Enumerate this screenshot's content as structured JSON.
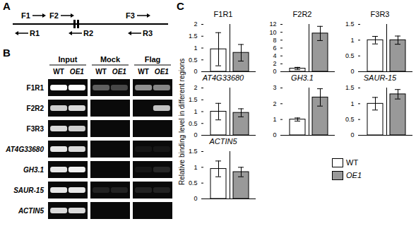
{
  "panel_labels": [
    "A",
    "B",
    "C"
  ],
  "diagram": {
    "forward_primers": [
      "F1",
      "F2",
      "F3"
    ],
    "reverse_primers": [
      "R1",
      "R2",
      "R3"
    ]
  },
  "gel": {
    "groups": [
      "Input",
      "Mock",
      "Flag"
    ],
    "lanes": [
      "WT",
      "OE1",
      "WT",
      "OE1",
      "WT",
      "OE1"
    ],
    "rows": [
      "F1R1",
      "F2R2",
      "F3R3",
      "AT4G33680",
      "GH3.1",
      "SAUR-15",
      "ACTIN5"
    ],
    "bands": [
      [
        1,
        1,
        0.35,
        0.25,
        0.55,
        0.5
      ],
      [
        0.8,
        0.85,
        0,
        0,
        0,
        0.75
      ],
      [
        0.85,
        0.8,
        0,
        0,
        0,
        0
      ],
      [
        0.9,
        0.85,
        0,
        0,
        0.05,
        0.05
      ],
      [
        0.9,
        0.95,
        0,
        0,
        0.05,
        0.12
      ],
      [
        0.9,
        0.9,
        0.1,
        0.1,
        0.1,
        0.1
      ],
      [
        0.85,
        0.85,
        0,
        0,
        0,
        0
      ]
    ]
  },
  "y_label": "Relative binding level in different regions",
  "legend_entries": [
    {
      "name": "WT",
      "color": "#ffffff"
    },
    {
      "name": "OE1",
      "color": "#999999"
    }
  ],
  "chart_data": [
    {
      "type": "bar",
      "title": "F1R1",
      "categories": [
        "WT",
        "OE1"
      ],
      "values": [
        0.95,
        0.8
      ],
      "errors": [
        0.7,
        0.35
      ],
      "colors": [
        "#ffffff",
        "#999999"
      ],
      "ylim": [
        0,
        2
      ],
      "yticks": [
        0,
        0.5,
        1,
        1.5,
        2
      ],
      "tick_labels": "y"
    },
    {
      "type": "bar",
      "title": "F2R2",
      "categories": [
        "WT",
        "OE1"
      ],
      "values": [
        0.8,
        9.7
      ],
      "errors": [
        0.3,
        1.8
      ],
      "colors": [
        "#ffffff",
        "#999999"
      ],
      "ylim": [
        0,
        12
      ],
      "yticks": [
        0,
        2,
        4,
        6,
        8,
        10,
        12
      ],
      "tick_labels": "y"
    },
    {
      "type": "bar",
      "title": "F3R3",
      "categories": [
        "WT",
        "OE1"
      ],
      "values": [
        1.0,
        1.0
      ],
      "errors": [
        0.12,
        0.13
      ],
      "colors": [
        "#ffffff",
        "#999999"
      ],
      "ylim": [
        0,
        1.5
      ],
      "yticks": [
        0,
        0.5,
        1,
        1.5
      ],
      "tick_labels": "y"
    },
    {
      "type": "bar",
      "title": "AT4G33680",
      "categories": [
        "WT",
        "OE1"
      ],
      "values": [
        1.0,
        0.95
      ],
      "errors": [
        0.35,
        0.17
      ],
      "colors": [
        "#ffffff",
        "#999999"
      ],
      "ylim": [
        0,
        2
      ],
      "yticks": [
        0,
        0.5,
        1,
        1.5,
        2
      ],
      "tick_labels": "y"
    },
    {
      "type": "bar",
      "title": "GH3.1",
      "categories": [
        "WT",
        "OE1"
      ],
      "values": [
        1.0,
        2.4
      ],
      "errors": [
        0.1,
        0.55
      ],
      "colors": [
        "#ffffff",
        "#999999"
      ],
      "ylim": [
        0,
        3
      ],
      "yticks": [
        0,
        1,
        2,
        3
      ],
      "tick_labels": "y"
    },
    {
      "type": "bar",
      "title": "SAUR-15",
      "categories": [
        "WT",
        "OE1"
      ],
      "values": [
        1.0,
        1.3
      ],
      "errors": [
        0.2,
        0.15
      ],
      "colors": [
        "#ffffff",
        "#999999"
      ],
      "ylim": [
        0,
        1.5
      ],
      "yticks": [
        0,
        0.5,
        1,
        1.5
      ],
      "tick_labels": "y"
    },
    {
      "type": "bar",
      "title": "ACTIN5",
      "categories": [
        "WT",
        "OE1"
      ],
      "values": [
        0.95,
        0.85
      ],
      "errors": [
        0.25,
        0.15
      ],
      "colors": [
        "#ffffff",
        "#999999"
      ],
      "ylim": [
        0,
        1.5
      ],
      "yticks": [
        0,
        0.5,
        1,
        1.5
      ],
      "tick_labels": "y"
    }
  ]
}
